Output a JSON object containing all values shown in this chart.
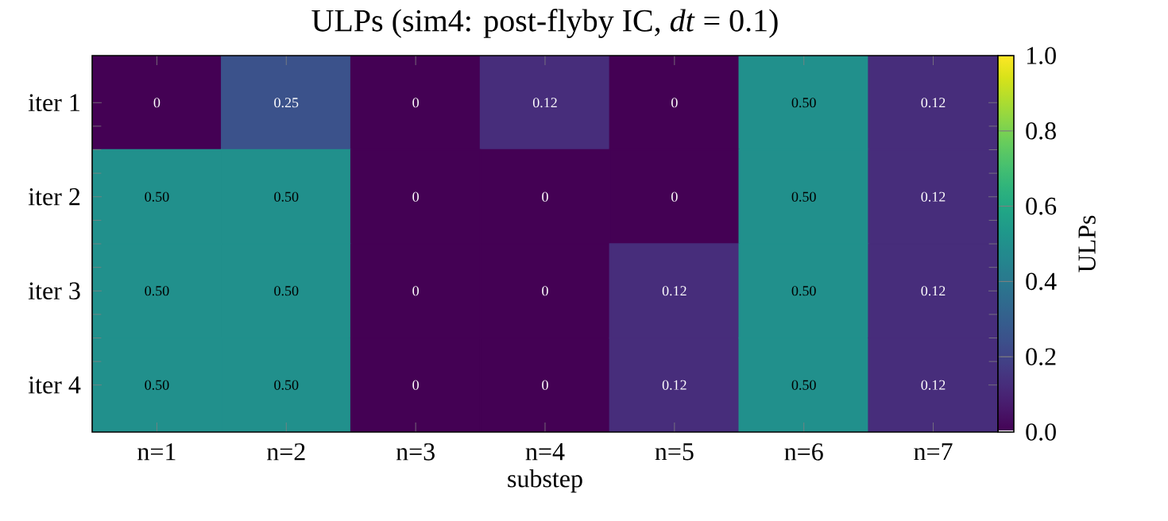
{
  "chart_data": {
    "type": "heatmap",
    "title": "ULPs (sim4: post-flyby IC, *dt* = 0.1)",
    "xlabel": "substep",
    "clabel": "ULPs",
    "categories": [
      "n=1",
      "n=2",
      "n=3",
      "n=4",
      "n=5",
      "n=6",
      "n=7"
    ],
    "y_categories": [
      "iter 1",
      "iter 2",
      "iter 3",
      "iter 4"
    ],
    "cells": [
      [
        0,
        0.25,
        0,
        0.125,
        0,
        0.5,
        0.125
      ],
      [
        0.5,
        0.5,
        0,
        0,
        0,
        0.5,
        0.125
      ],
      [
        0.5,
        0.5,
        0,
        0,
        0.125,
        0.5,
        0.125
      ],
      [
        0.5,
        0.5,
        0,
        0,
        0.125,
        0.5,
        0.125
      ]
    ],
    "cell_labels": [
      [
        "0",
        "0.25",
        "0",
        "0.12",
        "0",
        "0.50",
        "0.12"
      ],
      [
        "0.50",
        "0.50",
        "0",
        "0",
        "0",
        "0.50",
        "0.12"
      ],
      [
        "0.50",
        "0.50",
        "0",
        "0",
        "0.12",
        "0.50",
        "0.12"
      ],
      [
        "0.50",
        "0.50",
        "0",
        "0",
        "0.12",
        "0.50",
        "0.12"
      ]
    ],
    "clim": [
      0,
      1
    ],
    "cticks": [
      {
        "value": 0,
        "label": "0.0"
      },
      {
        "value": 0.2,
        "label": "0.2"
      },
      {
        "value": 0.4,
        "label": "0.4"
      },
      {
        "value": 0.6,
        "label": "0.6"
      },
      {
        "value": 0.8,
        "label": "0.8"
      },
      {
        "value": 1,
        "label": "1.0"
      }
    ]
  }
}
